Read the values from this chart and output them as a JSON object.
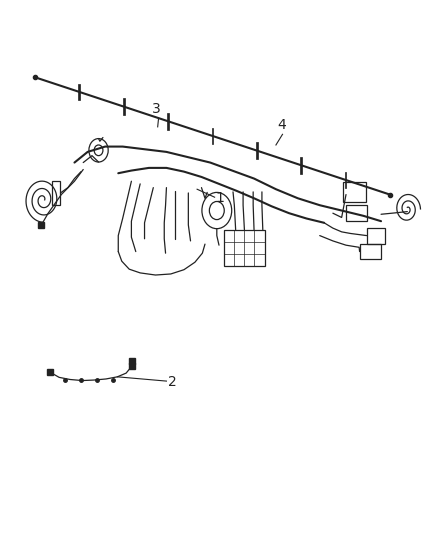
{
  "background_color": "#ffffff",
  "figure_width": 4.38,
  "figure_height": 5.33,
  "dpi": 100,
  "line_color": "#222222",
  "label_fontsize": 10
}
